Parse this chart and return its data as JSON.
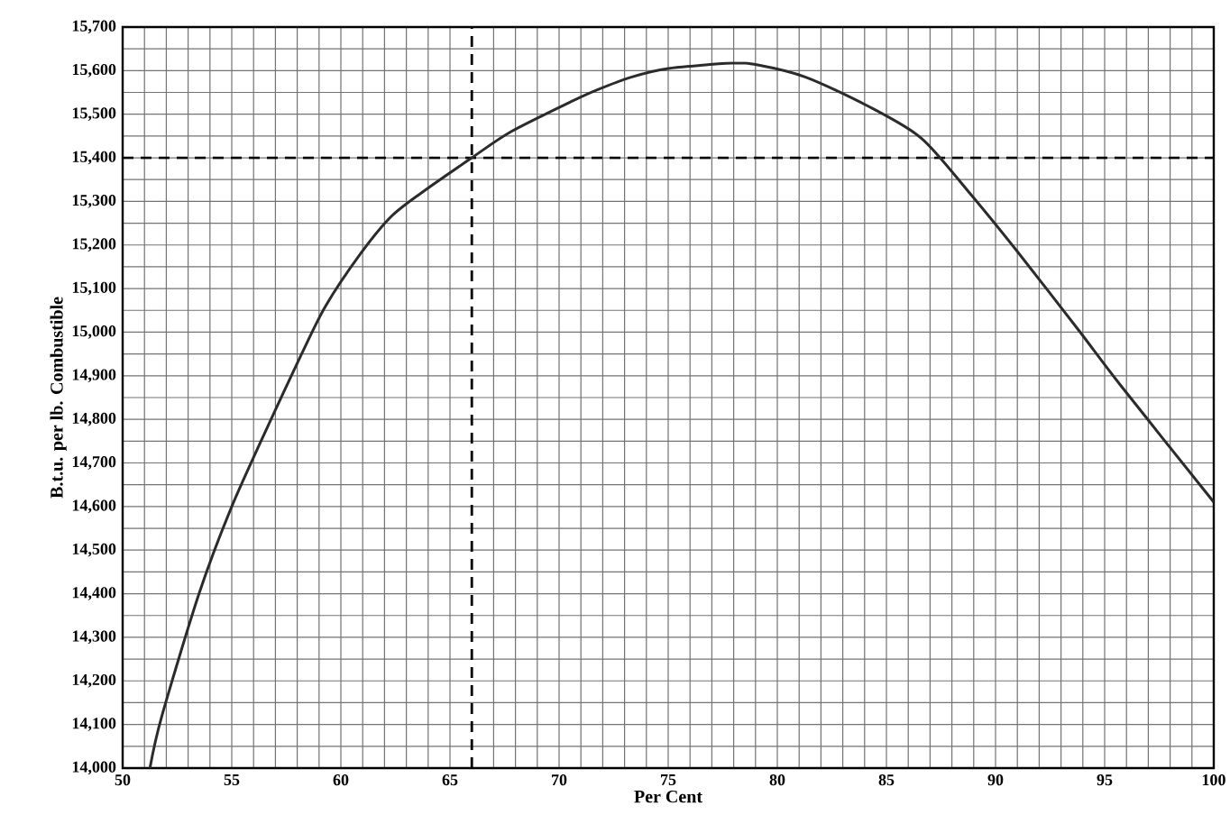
{
  "chart_data": {
    "type": "line",
    "xlabel": "Per Cent",
    "ylabel": "B.t.u. per lb. Combustible",
    "x": [
      51.25,
      51.8,
      53.5,
      55,
      56.8,
      58.2,
      59.3,
      60.9,
      62.3,
      63.7,
      66,
      67.8,
      70.6,
      71.7,
      73.3,
      75,
      77.9,
      79.1,
      81.3,
      84.1,
      86.6,
      88.8,
      91,
      93.8,
      95.7,
      100
    ],
    "series": [
      {
        "color": "#2b2b2b",
        "values": [
          14000,
          14120,
          14400,
          14600,
          14800,
          14950,
          15060,
          15180,
          15265,
          15320,
          15400,
          15460,
          15530,
          15555,
          15585,
          15605,
          15617,
          15613,
          15585,
          15520,
          15445,
          15320,
          15185,
          15005,
          14880,
          14610
        ]
      }
    ],
    "xlim": [
      50,
      100
    ],
    "ylim": [
      14000,
      15700
    ],
    "xticks": [
      50,
      55,
      60,
      65,
      70,
      75,
      80,
      85,
      90,
      95,
      100
    ],
    "yticks": [
      {
        "value": 14000,
        "label": "14,000"
      },
      {
        "value": 14100,
        "label": "14,100"
      },
      {
        "value": 14200,
        "label": "14,200"
      },
      {
        "value": 14300,
        "label": "14,300"
      },
      {
        "value": 14400,
        "label": "14,400"
      },
      {
        "value": 14500,
        "label": "14,500"
      },
      {
        "value": 14600,
        "label": "14,600"
      },
      {
        "value": 14700,
        "label": "14,700"
      },
      {
        "value": 14800,
        "label": "14,800"
      },
      {
        "value": 14900,
        "label": "14,900"
      },
      {
        "value": 15000,
        "label": "15,000"
      },
      {
        "value": 15100,
        "label": "15,100"
      },
      {
        "value": 15200,
        "label": "15,200"
      },
      {
        "value": 15300,
        "label": "15,300"
      },
      {
        "value": 15400,
        "label": "15,400"
      },
      {
        "value": 15500,
        "label": "15,500"
      },
      {
        "value": 15600,
        "label": "15,600"
      },
      {
        "value": 15700,
        "label": "15,700"
      }
    ],
    "ref_lines": [
      {
        "axis": "x",
        "value": 66,
        "line_style": "dashed"
      },
      {
        "axis": "y",
        "value": 15400,
        "line_style": "dashed"
      }
    ],
    "grid": true,
    "marker": "none",
    "line_style": "solid"
  }
}
